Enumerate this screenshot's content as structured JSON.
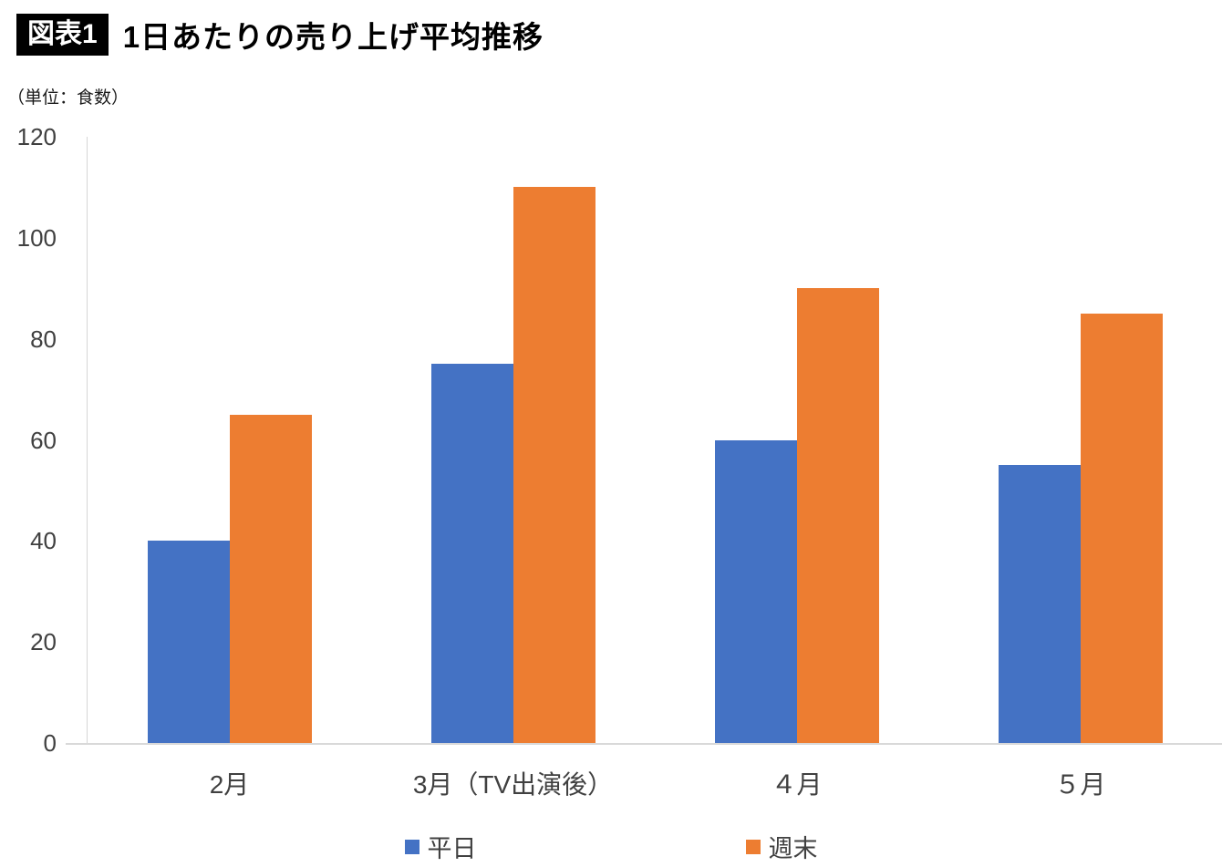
{
  "header": {
    "badge": "図表1",
    "title": "1日あたりの売り上げ平均推移",
    "unit_note": "（単位：食数）"
  },
  "chart_data": {
    "type": "bar",
    "title": "1日あたりの売り上げ平均推移",
    "unit": "（単位：食数）",
    "categories": [
      "2月",
      "3月（TV出演後）",
      "４月",
      "５月"
    ],
    "series": [
      {
        "key": "weekday",
        "name": "平日",
        "color": "#4472C4",
        "values": [
          40,
          75,
          60,
          55
        ]
      },
      {
        "key": "weekend",
        "name": "週末",
        "color": "#ED7D31",
        "values": [
          65,
          110,
          90,
          85
        ]
      }
    ],
    "xlabel": "",
    "ylabel": "",
    "ylim": [
      0,
      120
    ],
    "yticks": [
      0,
      20,
      40,
      60,
      80,
      100,
      120
    ],
    "grid": false,
    "legend_position": "bottom"
  }
}
